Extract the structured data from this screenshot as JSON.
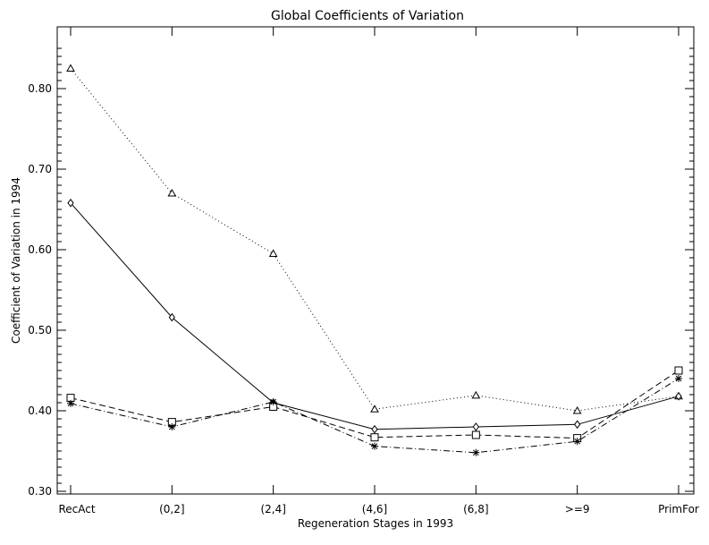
{
  "chart_data": {
    "type": "line",
    "title": "Global Coefficients of Variation",
    "xlabel": "Regeneration Stages in 1993",
    "ylabel": "Coefficient of Variation in 1994",
    "categories": [
      "RecAct",
      "(0,2]",
      "(2,4]",
      "(4,6]",
      "(6,8]",
      ">=9",
      "PrimFor"
    ],
    "ylim": [
      0.3,
      0.85
    ],
    "yticks": [
      "0.30",
      "0.40",
      "0.50",
      "0.60",
      "0.70",
      "0.80"
    ],
    "grid": false,
    "series": [
      {
        "marker": "triangle",
        "dash": "dotted",
        "values": [
          0.825,
          0.67,
          0.595,
          0.402,
          0.419,
          0.4,
          0.418
        ]
      },
      {
        "marker": "diamond",
        "dash": "solid",
        "values": [
          0.658,
          0.516,
          0.41,
          0.377,
          0.38,
          0.383,
          0.418
        ]
      },
      {
        "marker": "square",
        "dash": "dashed",
        "values": [
          0.416,
          0.386,
          0.405,
          0.367,
          0.37,
          0.366,
          0.45
        ]
      },
      {
        "marker": "asterisk",
        "dash": "dashdot",
        "values": [
          0.409,
          0.38,
          0.411,
          0.356,
          0.348,
          0.362,
          0.44
        ]
      }
    ]
  }
}
